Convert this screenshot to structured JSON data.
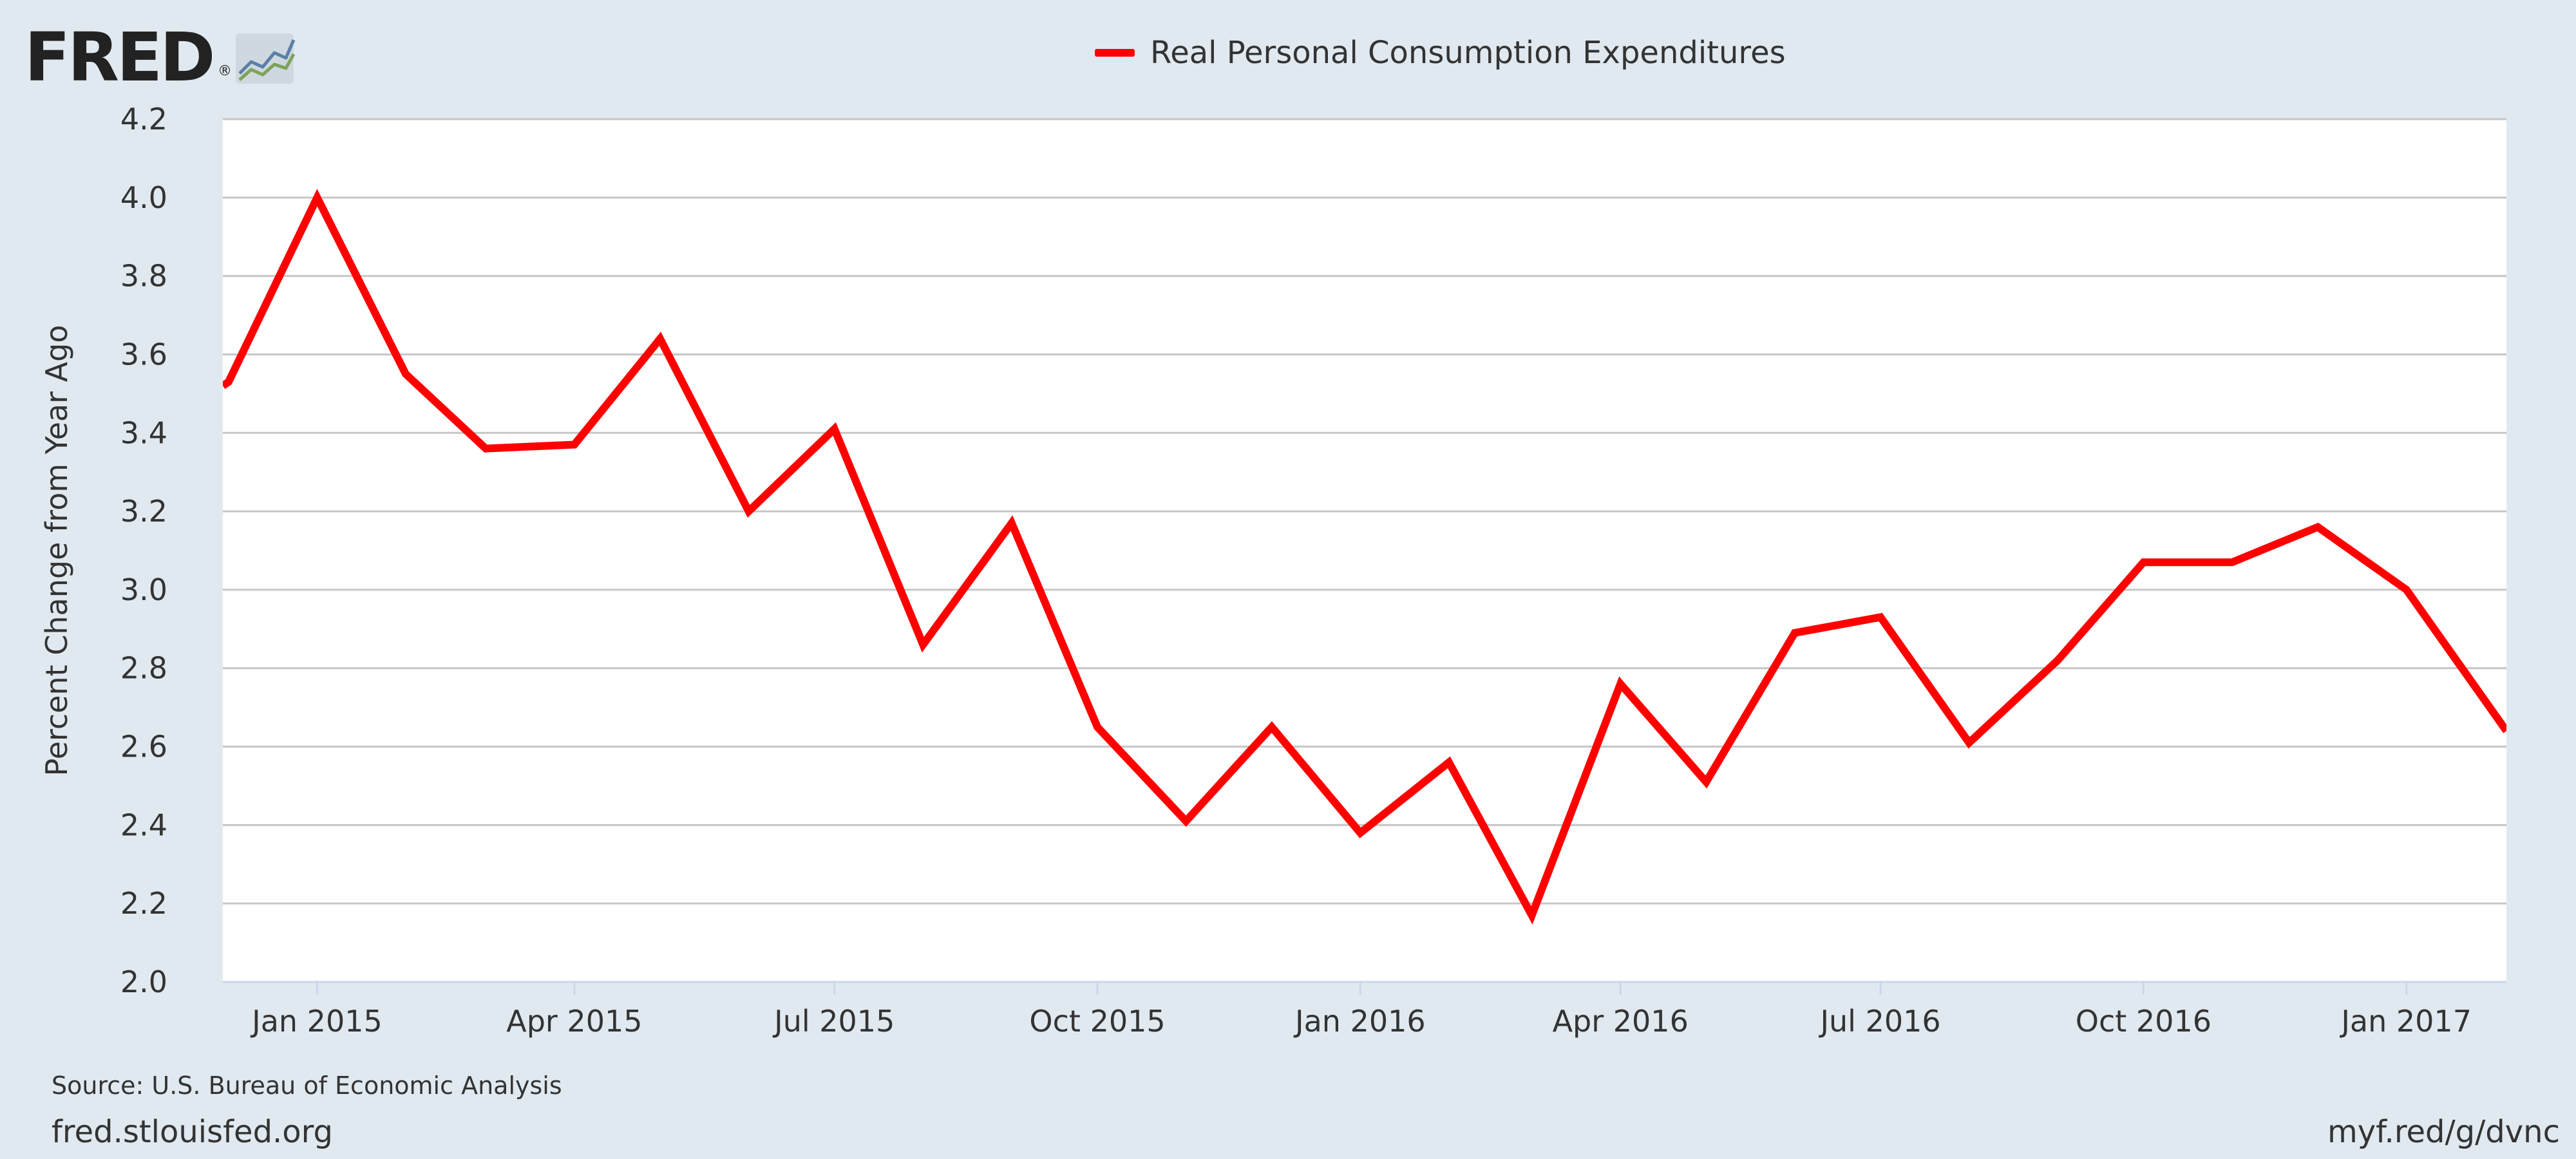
{
  "logo": {
    "text": "FRED",
    "registered": "®",
    "icon": "chart-line-icon"
  },
  "legend": {
    "label": "Real Personal Consumption Expenditures",
    "color": "#ff0000"
  },
  "footer": {
    "source": "Source: U.S. Bureau of Economic Analysis",
    "site": "fred.stlouisfed.org",
    "shortlink": "myf.red/g/dvnc"
  },
  "chart_data": {
    "type": "line",
    "title": "",
    "xlabel": "",
    "ylabel": "Percent Change from Year Ago",
    "ylim": [
      2.0,
      4.2
    ],
    "yticks": [
      "2.0",
      "2.2",
      "2.4",
      "2.6",
      "2.8",
      "3.0",
      "3.2",
      "3.4",
      "3.6",
      "3.8",
      "4.0",
      "4.2"
    ],
    "x_range": [
      "2014-11-29",
      "2017-02-05"
    ],
    "xticks": [
      {
        "label": "Jan 2015",
        "date": "2015-01-01"
      },
      {
        "label": "Apr 2015",
        "date": "2015-04-01"
      },
      {
        "label": "Jul 2015",
        "date": "2015-07-01"
      },
      {
        "label": "Oct 2015",
        "date": "2015-10-01"
      },
      {
        "label": "Jan 2016",
        "date": "2016-01-01"
      },
      {
        "label": "Apr 2016",
        "date": "2016-04-01"
      },
      {
        "label": "Jul 2016",
        "date": "2016-07-01"
      },
      {
        "label": "Oct 2016",
        "date": "2016-10-01"
      },
      {
        "label": "Jan 2017",
        "date": "2017-01-01"
      }
    ],
    "grid": true,
    "legend_position": "top-center",
    "series": [
      {
        "name": "Real Personal Consumption Expenditures",
        "color": "#ff0000",
        "points": [
          {
            "x": "2014-11-29",
            "y": 3.52
          },
          {
            "x": "2014-12-01",
            "y": 3.53
          },
          {
            "x": "2015-01-01",
            "y": 4.0
          },
          {
            "x": "2015-02-01",
            "y": 3.55
          },
          {
            "x": "2015-03-01",
            "y": 3.36
          },
          {
            "x": "2015-04-01",
            "y": 3.37
          },
          {
            "x": "2015-05-01",
            "y": 3.64
          },
          {
            "x": "2015-06-01",
            "y": 3.2
          },
          {
            "x": "2015-07-01",
            "y": 3.41
          },
          {
            "x": "2015-08-01",
            "y": 2.86
          },
          {
            "x": "2015-09-01",
            "y": 3.17
          },
          {
            "x": "2015-10-01",
            "y": 2.65
          },
          {
            "x": "2015-11-01",
            "y": 2.41
          },
          {
            "x": "2015-12-01",
            "y": 2.65
          },
          {
            "x": "2016-01-01",
            "y": 2.38
          },
          {
            "x": "2016-02-01",
            "y": 2.56
          },
          {
            "x": "2016-03-01",
            "y": 2.17
          },
          {
            "x": "2016-04-01",
            "y": 2.76
          },
          {
            "x": "2016-05-01",
            "y": 2.51
          },
          {
            "x": "2016-06-01",
            "y": 2.89
          },
          {
            "x": "2016-07-01",
            "y": 2.93
          },
          {
            "x": "2016-08-01",
            "y": 2.61
          },
          {
            "x": "2016-09-01",
            "y": 2.82
          },
          {
            "x": "2016-10-01",
            "y": 3.07
          },
          {
            "x": "2016-11-01",
            "y": 3.07
          },
          {
            "x": "2016-12-01",
            "y": 3.16
          },
          {
            "x": "2017-01-01",
            "y": 3.0
          },
          {
            "x": "2017-02-05",
            "y": 2.64
          }
        ]
      }
    ]
  }
}
